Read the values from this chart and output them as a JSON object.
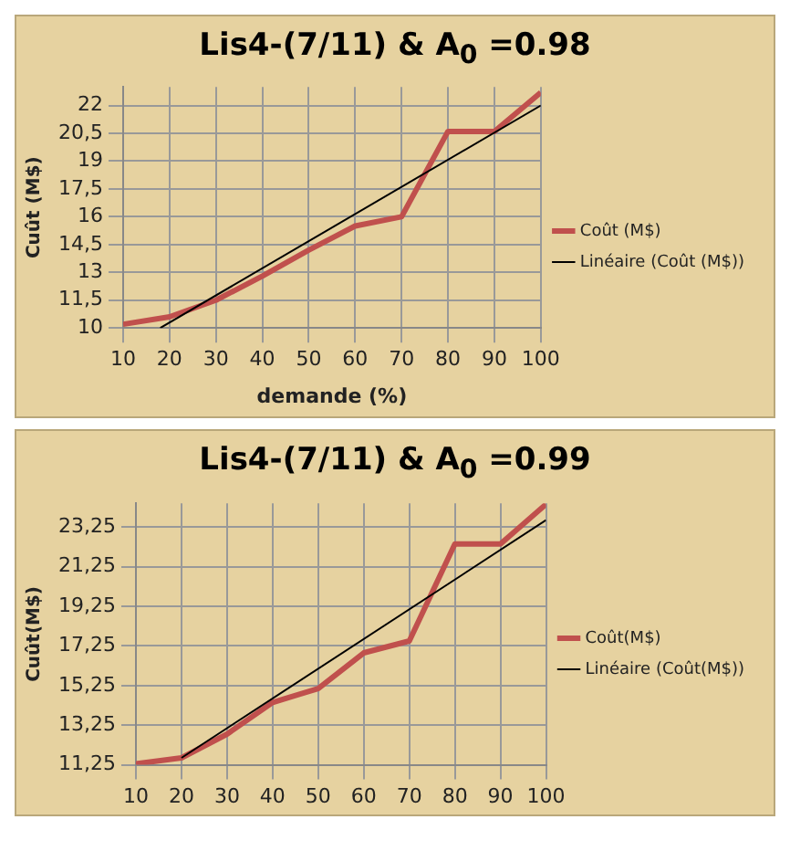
{
  "chart_data": [
    {
      "type": "line",
      "title": "Lis4-(7/11) & A$_{0}$ =0.98",
      "xlabel": "demande (%)",
      "ylabel": "Cuût (M$)",
      "x": [
        10,
        20,
        30,
        40,
        50,
        60,
        70,
        80,
        90,
        100
      ],
      "xlim": [
        10,
        100
      ],
      "xticks": [
        10,
        20,
        30,
        40,
        50,
        60,
        70,
        80,
        90,
        100
      ],
      "ylim": [
        10,
        23
      ],
      "yticks": [
        10,
        {
          "value": 11.5,
          "label": "11,5"
        },
        13,
        {
          "value": 14.5,
          "label": "14,5"
        },
        16,
        {
          "value": 17.5,
          "label": "17,5"
        },
        19,
        {
          "value": 20.5,
          "label": "20,5"
        },
        22
      ],
      "grid": true,
      "legend": "right",
      "marker": "none",
      "series": [
        {
          "name": "Coût (M$)",
          "color": "#c0504d",
          "values": [
            10.2,
            10.6,
            11.5,
            12.8,
            14.2,
            15.5,
            16,
            20.6,
            20.6,
            22.7
          ]
        },
        {
          "name": "Linéaire (Coût (M$))",
          "color": "#000000",
          "type": "line",
          "x": [
            18,
            100
          ],
          "values": [
            10,
            22
          ]
        }
      ]
    },
    {
      "type": "line",
      "title": "Lis4-(7/11) & A$_{0}$ =0.99",
      "ylabel": "Cuût(M$)",
      "x": [
        10,
        20,
        30,
        40,
        50,
        60,
        70,
        80,
        90,
        100
      ],
      "xlim": [
        10,
        100
      ],
      "xticks": [
        10,
        20,
        30,
        40,
        50,
        60,
        70,
        80,
        90,
        100
      ],
      "ylim": [
        11.25,
        24.45
      ],
      "yticks": [
        {
          "value": 11.25,
          "label": "11,25"
        },
        {
          "value": 13.25,
          "label": "13,25"
        },
        {
          "value": 15.25,
          "label": "15,25"
        },
        {
          "value": 17.25,
          "label": "17,25"
        },
        {
          "value": 19.25,
          "label": "19,25"
        },
        {
          "value": 21.25,
          "label": "21,25"
        },
        {
          "value": 23.25,
          "label": "23,25"
        }
      ],
      "grid": true,
      "legend": "right",
      "marker": "none",
      "series": [
        {
          "name": "Coût(M$)",
          "color": "#c0504d",
          "values": [
            11.3,
            11.6,
            12.8,
            14.4,
            15.1,
            16.9,
            17.5,
            22.4,
            22.4,
            24.4
          ]
        },
        {
          "name": "Linéaire (Coût(M$))",
          "color": "#000000",
          "type": "line",
          "x": [
            20,
            100
          ],
          "values": [
            11.6,
            23.6
          ]
        }
      ]
    }
  ]
}
